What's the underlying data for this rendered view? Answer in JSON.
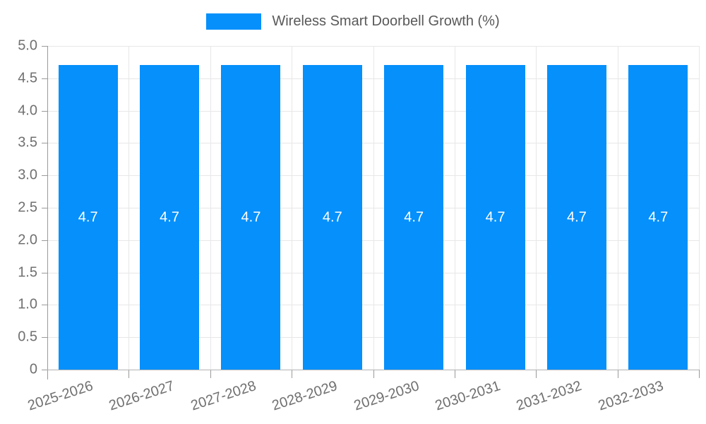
{
  "chart_data": {
    "type": "bar",
    "title": "",
    "legend": "Wireless Smart Doorbell Growth (%)",
    "legend_position": "top",
    "categories": [
      "2025-2026",
      "2026-2027",
      "2027-2028",
      "2028-2029",
      "2029-2030",
      "2030-2031",
      "2031-2032",
      "2032-2033"
    ],
    "values": [
      4.7,
      4.7,
      4.7,
      4.7,
      4.7,
      4.7,
      4.7,
      4.7
    ],
    "value_labels": [
      "4.7",
      "4.7",
      "4.7",
      "4.7",
      "4.7",
      "4.7",
      "4.7",
      "4.7"
    ],
    "xlabel": "",
    "ylabel": "",
    "ylim": [
      0,
      5
    ],
    "yticks": [
      {
        "v": 0,
        "label": "0"
      },
      {
        "v": 0.5,
        "label": "0.5"
      },
      {
        "v": 1,
        "label": "1.0"
      },
      {
        "v": 1.5,
        "label": "1.5"
      },
      {
        "v": 2,
        "label": "2.0"
      },
      {
        "v": 2.5,
        "label": "2.5"
      },
      {
        "v": 3,
        "label": "3.0"
      },
      {
        "v": 3.5,
        "label": "3.5"
      },
      {
        "v": 4,
        "label": "4.0"
      },
      {
        "v": 4.5,
        "label": "4.5"
      },
      {
        "v": 5,
        "label": "5.0"
      }
    ],
    "grid": true,
    "colors": {
      "bar": "#0590fb",
      "grid_line": "#e7e7e7",
      "y_axis_line": "#9a9a9a",
      "x_axis_line": "#b3b3b3",
      "tick": "#9a9a9a",
      "axis_text": "#707070",
      "legend_text": "#595959",
      "value_label": "#ffffff",
      "background": "#ffffff"
    }
  }
}
